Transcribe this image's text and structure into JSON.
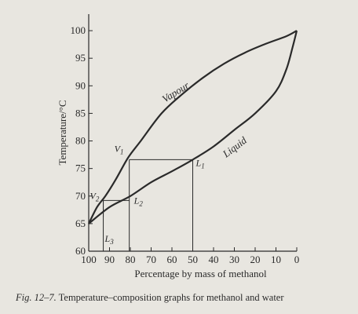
{
  "chart_data": {
    "type": "line",
    "xlabel": "Percentage by mass of methanol",
    "ylabel": "Temperature/°C",
    "x_reversed": true,
    "xlim": [
      100,
      0
    ],
    "ylim": [
      60,
      103
    ],
    "x_ticks": [
      "100",
      "90",
      "80",
      "70",
      "60",
      "50",
      "40",
      "30",
      "20",
      "10",
      "0"
    ],
    "y_ticks": [
      "60",
      "65",
      "70",
      "75",
      "80",
      "85",
      "90",
      "95",
      "100"
    ],
    "series": [
      {
        "name": "Vapour",
        "points": [
          [
            100,
            65
          ],
          [
            96,
            68
          ],
          [
            92,
            70
          ],
          [
            87,
            73
          ],
          [
            81,
            77
          ],
          [
            75,
            80
          ],
          [
            65,
            85
          ],
          [
            55,
            88.5
          ],
          [
            45,
            91.5
          ],
          [
            35,
            94
          ],
          [
            25,
            96
          ],
          [
            15,
            97.6
          ],
          [
            5,
            99
          ],
          [
            0,
            100
          ]
        ]
      },
      {
        "name": "Liquid",
        "points": [
          [
            100,
            65
          ],
          [
            90,
            68
          ],
          [
            80,
            70
          ],
          [
            70,
            72.5
          ],
          [
            60,
            74.5
          ],
          [
            50,
            76.6
          ],
          [
            40,
            79
          ],
          [
            30,
            82
          ],
          [
            20,
            85
          ],
          [
            10,
            89
          ],
          [
            5,
            93
          ],
          [
            2,
            97
          ],
          [
            0,
            100
          ]
        ]
      }
    ],
    "tie_lines": [
      {
        "from": "V1",
        "to": "L1",
        "y": 76.6,
        "x_from": 80.5,
        "x_to": 50
      },
      {
        "from": "V2",
        "to": "L2",
        "y": 69.2,
        "x_from": 93,
        "x_to": 80.5
      }
    ],
    "drop_lines": [
      {
        "x": 80.5,
        "y_from": 60,
        "y_to": 76.6
      },
      {
        "x": 50,
        "y_from": 60,
        "y_to": 76.6
      },
      {
        "x": 93,
        "y_from": 60,
        "y_to": 69.2
      }
    ],
    "points": [
      {
        "label": "V",
        "sub": "1",
        "x": 80.5,
        "y": 76.6
      },
      {
        "label": "L",
        "sub": "1",
        "x": 50,
        "y": 76.6
      },
      {
        "label": "V",
        "sub": "2",
        "x": 93,
        "y": 69.2
      },
      {
        "label": "L",
        "sub": "2",
        "x": 80.5,
        "y": 69.2
      },
      {
        "label": "L",
        "sub": "3",
        "x": 93,
        "y": 65
      }
    ],
    "grid": false
  },
  "caption": {
    "fig_label": "Fig. 12–7.",
    "text": "Temperature–composition graphs for methanol and water"
  }
}
